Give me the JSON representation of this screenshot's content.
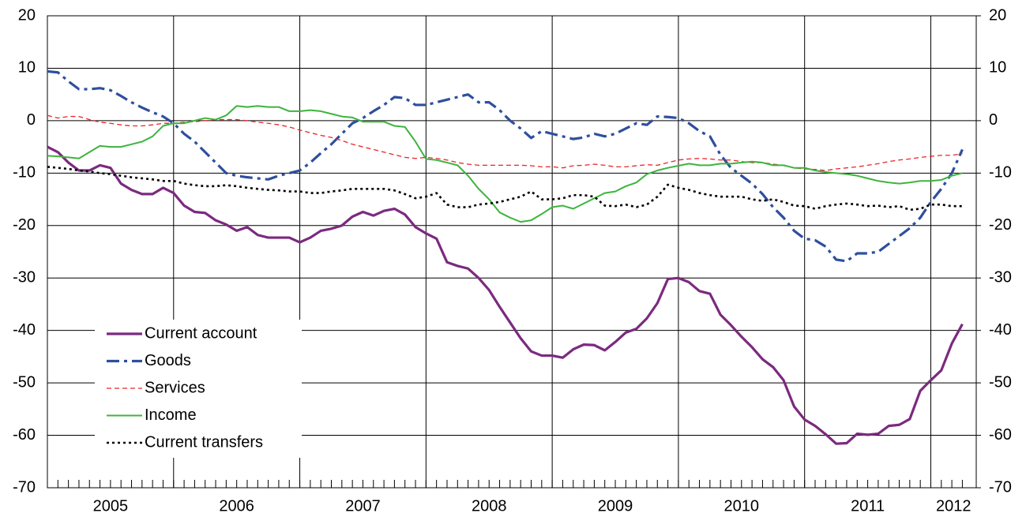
{
  "chart_data": {
    "type": "line",
    "xlim": [
      2005,
      2012.36
    ],
    "xticks": [
      2005,
      2006,
      2007,
      2008,
      2009,
      2010,
      2011,
      2012
    ],
    "ylim": [
      -70,
      20
    ],
    "yticks": [
      -70,
      -60,
      -50,
      -40,
      -30,
      -20,
      -10,
      0,
      10,
      20
    ],
    "y2lim": [
      -70,
      20
    ],
    "y2ticks": [
      -70,
      -60,
      -50,
      -40,
      -30,
      -20,
      -10,
      0,
      10,
      20
    ],
    "grid": true,
    "legend": "lower-left",
    "x": [
      2005,
      2005.0833,
      2005.1667,
      2005.25,
      2005.3333,
      2005.4167,
      2005.5,
      2005.5833,
      2005.6667,
      2005.75,
      2005.8333,
      2005.9167,
      2006,
      2006.0833,
      2006.1667,
      2006.25,
      2006.3333,
      2006.4167,
      2006.5,
      2006.5833,
      2006.6667,
      2006.75,
      2006.8333,
      2006.9167,
      2007,
      2007.0833,
      2007.1667,
      2007.25,
      2007.3333,
      2007.4167,
      2007.5,
      2007.5833,
      2007.6667,
      2007.75,
      2007.8333,
      2007.9167,
      2008,
      2008.0833,
      2008.1667,
      2008.25,
      2008.3333,
      2008.4167,
      2008.5,
      2008.5833,
      2008.6667,
      2008.75,
      2008.8333,
      2008.9167,
      2009,
      2009.0833,
      2009.1667,
      2009.25,
      2009.3333,
      2009.4167,
      2009.5,
      2009.5833,
      2009.6667,
      2009.75,
      2009.8333,
      2009.9167,
      2010,
      2010.0833,
      2010.1667,
      2010.25,
      2010.3333,
      2010.4167,
      2010.5,
      2010.5833,
      2010.6667,
      2010.75,
      2010.8333,
      2010.9167,
      2011,
      2011.0833,
      2011.1667,
      2011.25,
      2011.3333,
      2011.4167,
      2011.5,
      2011.5833,
      2011.6667,
      2011.75,
      2011.8333,
      2011.9167,
      2012,
      2012.0833,
      2012.1667,
      2012.25
    ],
    "series": [
      {
        "name": "Current account",
        "color": "#7b2a7f",
        "style": "solid",
        "width": 3.2,
        "values": [
          -5,
          -6,
          -8,
          -9.5,
          -9.5,
          -8.5,
          -9,
          -12,
          -13.2,
          -14,
          -14,
          -12.8,
          -13.8,
          -16.2,
          -17.4,
          -17.6,
          -19,
          -19.8,
          -21,
          -20.3,
          -21.8,
          -22.3,
          -22.3,
          -22.3,
          -23.2,
          -22.3,
          -21,
          -20.6,
          -20,
          -18.3,
          -17.4,
          -18.1,
          -17.2,
          -16.8,
          -17.9,
          -20.3,
          -21.5,
          -22.5,
          -27,
          -27.7,
          -28.2,
          -30,
          -32.3,
          -35.5,
          -38.5,
          -41.5,
          -44,
          -44.8,
          -44.8,
          -45.2,
          -43.6,
          -42.7,
          -42.8,
          -43.8,
          -42.2,
          -40.4,
          -39.7,
          -37.7,
          -34.8,
          -30.2,
          -30,
          -30.8,
          -32.5,
          -33,
          -37,
          -39,
          -41.2,
          -43.2,
          -45.5,
          -47,
          -49.5,
          -54.5,
          -57,
          -58.2,
          -59.8,
          -61.6,
          -61.5,
          -59.7,
          -59.9,
          -59.7,
          -58.2,
          -58,
          -56.9,
          -51.5,
          -49.5,
          -47.6,
          -42.5,
          -38.8
        ]
      },
      {
        "name": "Goods",
        "color": "#2e4f9e",
        "style": "dash-dot",
        "width": 3.2,
        "values": [
          9.4,
          9.2,
          7.5,
          6,
          6,
          6.2,
          5.8,
          4.7,
          3.5,
          2.5,
          1.6,
          0.8,
          -0.5,
          -2.5,
          -4,
          -6,
          -8,
          -10,
          -10.5,
          -10.8,
          -11,
          -11.2,
          -10.5,
          -10,
          -9.5,
          -8,
          -6.2,
          -4.5,
          -2.5,
          -0.5,
          0.5,
          1.8,
          3,
          4.5,
          4.3,
          3,
          3,
          3.5,
          4,
          4.5,
          5,
          3.5,
          3.5,
          2,
          0,
          -1.5,
          -3.3,
          -2,
          -2.5,
          -3,
          -3.5,
          -3.2,
          -2.5,
          -3,
          -2.5,
          -1.5,
          -0.5,
          -0.8,
          0.8,
          0.7,
          0.5,
          -0.5,
          -2,
          -3,
          -6.5,
          -9,
          -10.5,
          -12,
          -14,
          -16.5,
          -18.5,
          -21,
          -22.5,
          -22.8,
          -24,
          -26.5,
          -26.8,
          -25.3,
          -25.3,
          -25,
          -23.5,
          -22,
          -20.5,
          -18.5,
          -15.5,
          -13,
          -10,
          -5.5
        ]
      },
      {
        "name": "Services",
        "color": "#e8262b",
        "style": "dashed",
        "width": 1.3,
        "values": [
          1,
          0.5,
          0.8,
          0.8,
          0.2,
          -0.3,
          -0.5,
          -0.8,
          -1,
          -1,
          -0.8,
          -0.5,
          -0.5,
          -0.3,
          -0.2,
          0,
          0.2,
          0.2,
          0.2,
          0,
          -0.3,
          -0.5,
          -0.8,
          -1.2,
          -1.8,
          -2.3,
          -2.8,
          -3.2,
          -3.8,
          -4.5,
          -5,
          -5.5,
          -6,
          -6.5,
          -7,
          -7.2,
          -7,
          -7.2,
          -7.5,
          -8,
          -8.3,
          -8.5,
          -8.5,
          -8.5,
          -8.5,
          -8.5,
          -8.6,
          -8.8,
          -8.8,
          -9,
          -8.6,
          -8.5,
          -8.3,
          -8.5,
          -8.8,
          -8.8,
          -8.6,
          -8.4,
          -8.5,
          -8,
          -7.5,
          -7.3,
          -7.2,
          -7.3,
          -7.5,
          -7.5,
          -7.8,
          -8,
          -8,
          -8.3,
          -8.5,
          -9,
          -9.2,
          -9.3,
          -9.5,
          -9.2,
          -9,
          -8.8,
          -8.5,
          -8.2,
          -7.8,
          -7.5,
          -7.3,
          -7,
          -6.8,
          -6.6,
          -6.6,
          -6.3
        ]
      },
      {
        "name": "Income",
        "color": "#3db43d",
        "style": "solid",
        "width": 2,
        "values": [
          -6.7,
          -6.8,
          -7,
          -7.2,
          -6,
          -4.8,
          -5,
          -5,
          -4.5,
          -4,
          -3,
          -1,
          -0.5,
          -0.5,
          0,
          0.5,
          0.2,
          1,
          2.8,
          2.6,
          2.8,
          2.6,
          2.6,
          1.8,
          1.8,
          2,
          1.8,
          1.3,
          0.8,
          0.6,
          -0.2,
          -0.2,
          -0.2,
          -1,
          -1.2,
          -4,
          -7.3,
          -7.5,
          -8,
          -8.5,
          -10.5,
          -13,
          -15,
          -17.5,
          -18.5,
          -19.3,
          -19,
          -17.8,
          -16.5,
          -16.2,
          -16.8,
          -15.8,
          -14.8,
          -13.8,
          -13.5,
          -12.5,
          -11.8,
          -10.2,
          -9.5,
          -9,
          -8.6,
          -8.2,
          -8.5,
          -8.5,
          -8.2,
          -8.2,
          -8,
          -7.8,
          -8,
          -8.5,
          -8.5,
          -9,
          -9,
          -9.5,
          -9.8,
          -10,
          -10.2,
          -10.5,
          -11,
          -11.5,
          -11.8,
          -12,
          -11.8,
          -11.5,
          -11.5,
          -11.3,
          -10.5,
          -10
        ]
      },
      {
        "name": "Current transfers",
        "color": "#000000",
        "style": "dotted",
        "width": 2.6,
        "values": [
          -8.8,
          -9,
          -9.2,
          -9.5,
          -9.7,
          -10,
          -10.2,
          -10.5,
          -10.8,
          -11,
          -11.2,
          -11.5,
          -11.5,
          -12,
          -12.3,
          -12.5,
          -12.5,
          -12.3,
          -12.5,
          -12.8,
          -13,
          -13.2,
          -13.3,
          -13.5,
          -13.5,
          -13.8,
          -13.8,
          -13.5,
          -13.3,
          -13,
          -13,
          -13,
          -13,
          -13.3,
          -14,
          -14.8,
          -14.5,
          -13.8,
          -16,
          -16.5,
          -16.5,
          -16,
          -15.8,
          -15.5,
          -15,
          -14.5,
          -13.5,
          -15,
          -15,
          -14.8,
          -14.2,
          -14.2,
          -14.5,
          -16.2,
          -16.3,
          -16,
          -16.5,
          -16,
          -14.5,
          -12.2,
          -12.8,
          -13.2,
          -13.8,
          -14.2,
          -14.5,
          -14.5,
          -14.5,
          -15,
          -15.3,
          -15,
          -15.5,
          -16.2,
          -16.3,
          -16.8,
          -16.3,
          -16,
          -15.8,
          -16,
          -16.3,
          -16.2,
          -16.5,
          -16.3,
          -17,
          -16.8,
          -16,
          -16,
          -16.3,
          -16.3
        ]
      }
    ]
  }
}
